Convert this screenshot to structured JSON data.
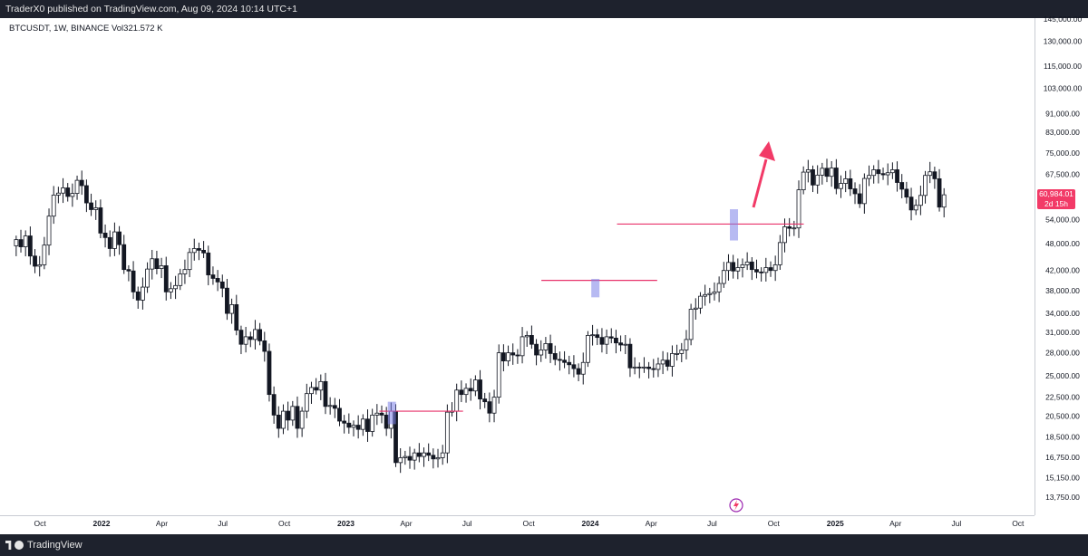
{
  "header": {
    "published_text": "TraderX0 published on TradingView.com, Aug 09, 2024 10:14 UTC+1"
  },
  "symbol_info": "BTCUSDT, 1W, BINANCE  Vol321.572 K",
  "footer": {
    "brand": "TradingView"
  },
  "price_tag": {
    "price": "60,984.01",
    "countdown": "2d 15h",
    "color": "#f23a67"
  },
  "colors": {
    "up": "#131722",
    "down": "#131722",
    "level_line": "#e8336b",
    "highlight": "#7b82e8",
    "arrow": "#f23a67"
  },
  "chart_data": {
    "type": "candlestick",
    "symbol": "BTCUSDT",
    "interval": "1W",
    "exchange": "BINANCE",
    "y_scale": "log",
    "y_ticks": [
      145000,
      130000,
      115000,
      103000,
      91000,
      83000,
      75000,
      67500,
      60984.01,
      54000,
      48000,
      42000,
      38000,
      34000,
      31000,
      28000,
      25000,
      22500,
      20500,
      18500,
      16750,
      15150,
      13750
    ],
    "y_tick_labels": [
      "145,000.00",
      "130,000.00",
      "115,000.00",
      "103,000.00",
      "91,000.00",
      "83,000.00",
      "75,000.00",
      "67,500.00",
      "60,984.01",
      "54,000.00",
      "48,000.00",
      "42,000.00",
      "38,000.00",
      "34,000.00",
      "31,000.00",
      "28,000.00",
      "25,000.00",
      "22,500.00",
      "20,500.00",
      "18,500.00",
      "16,750.00",
      "15,150.00",
      "13,750.00"
    ],
    "x_labels": [
      "Oct",
      "2022",
      "Apr",
      "Jul",
      "Oct",
      "2023",
      "Apr",
      "Jul",
      "Oct",
      "2024",
      "Apr",
      "Jul",
      "Oct",
      "2025",
      "Apr",
      "Jul",
      "Oct"
    ],
    "x_label_dates": [
      "2021-10-01",
      "2022-01-01",
      "2022-04-01",
      "2022-07-01",
      "2022-10-01",
      "2023-01-01",
      "2023-04-01",
      "2023-07-01",
      "2023-10-01",
      "2024-01-01",
      "2024-04-01",
      "2024-07-01",
      "2024-10-01",
      "2025-01-01",
      "2025-04-01",
      "2025-07-01",
      "2025-10-01"
    ],
    "closes_weekly_from_2021-08-23": [
      48900,
      47200,
      49800,
      45100,
      42900,
      43200,
      47600,
      54900,
      60900,
      61500,
      63100,
      60500,
      61400,
      65500,
      63800,
      58600,
      56700,
      57200,
      50500,
      49400,
      46800,
      50800,
      47700,
      42200,
      41900,
      37800,
      36300,
      38700,
      42300,
      44500,
      42400,
      43000,
      37800,
      38400,
      39000,
      41300,
      42200,
      45900,
      46800,
      46400,
      45800,
      41100,
      40400,
      39700,
      38500,
      34000,
      35500,
      31300,
      29200,
      30300,
      29900,
      31400,
      29700,
      28200,
      22800,
      20600,
      19300,
      21000,
      20100,
      21500,
      19300,
      21000,
      22900,
      23600,
      23300,
      24300,
      21500,
      21600,
      21300,
      20000,
      19800,
      19400,
      19600,
      19200,
      20200,
      19000,
      20600,
      20800,
      20600,
      19300,
      21000,
      16300,
      16700,
      16800,
      16500,
      17100,
      16800,
      17100,
      16900,
      16600,
      16700,
      17100,
      20900,
      21000,
      23300,
      22800,
      23500,
      23200,
      24500,
      22300,
      22000,
      20800,
      22500,
      28000,
      26900,
      28000,
      27700,
      27600,
      30300,
      30500,
      29200,
      27700,
      28400,
      29300,
      27900,
      27100,
      27000,
      26700,
      26400,
      25900,
      25200,
      26700,
      30500,
      30600,
      30200,
      29200,
      30300,
      30100,
      29400,
      29100,
      29200,
      26000,
      26100,
      26000,
      26100,
      25900,
      25800,
      26500,
      27000,
      26200,
      27900,
      27900,
      28400,
      29900,
      34700,
      34900,
      37000,
      37300,
      37500,
      37800,
      39400,
      42000,
      43700,
      41900,
      42600,
      43200,
      43800,
      42200,
      41700,
      41600,
      42600,
      42000,
      43200,
      48200,
      52100,
      51700,
      51800,
      62500,
      68200,
      69000,
      64000,
      67200,
      69500,
      66800,
      69600,
      62900,
      64500,
      66000,
      62800,
      61300,
      58400,
      66100,
      67100,
      69000,
      67700,
      67300,
      68000,
      69000,
      64800,
      62700,
      60300,
      56600,
      57900,
      60800,
      67100,
      68300,
      66000,
      57400,
      60984
    ]
  },
  "annotations": {
    "support_levels": [
      21000,
      40000,
      52800
    ],
    "highlights": [
      "2023-03",
      "2024-01",
      "2024-08"
    ],
    "arrow": "up"
  }
}
